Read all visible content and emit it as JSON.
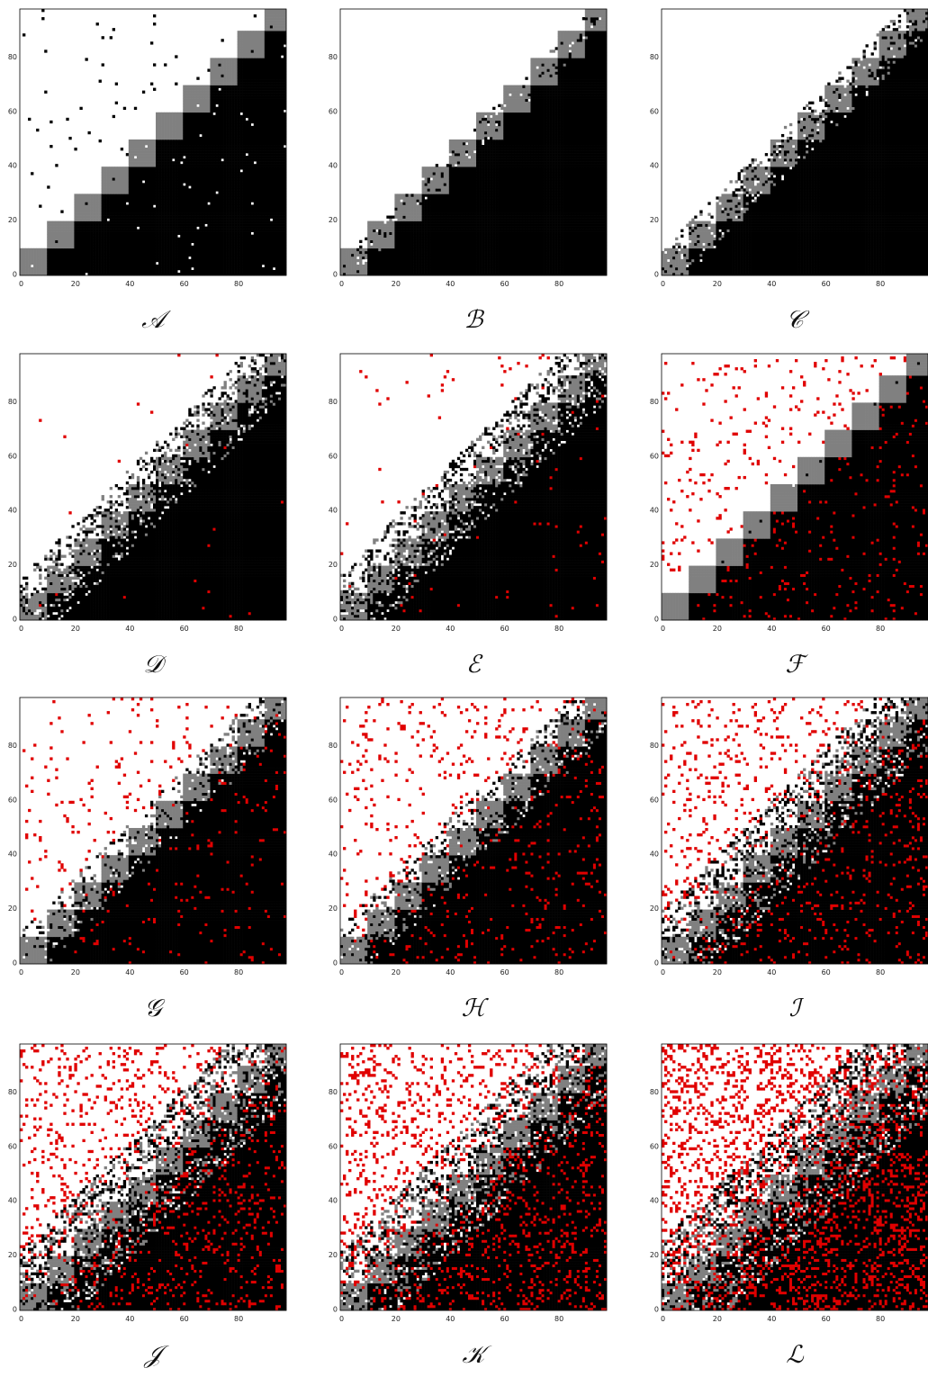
{
  "chart_data": [
    {
      "type": "heatmap",
      "label": "𝒜",
      "pattern": "A",
      "xticks": [
        0,
        20,
        40,
        60,
        80
      ],
      "yticks": [
        0,
        20,
        40,
        60,
        80
      ],
      "xlim": [
        0,
        98
      ],
      "ylim": [
        0,
        98
      ]
    },
    {
      "type": "heatmap",
      "label": "ℬ",
      "pattern": "B",
      "xticks": [
        0,
        20,
        40,
        60,
        80
      ],
      "yticks": [
        0,
        20,
        40,
        60,
        80
      ],
      "xlim": [
        0,
        98
      ],
      "ylim": [
        0,
        98
      ]
    },
    {
      "type": "heatmap",
      "label": "𝒞",
      "pattern": "C",
      "xticks": [
        0,
        20,
        40,
        60,
        80
      ],
      "yticks": [
        0,
        20,
        40,
        60,
        80
      ],
      "xlim": [
        0,
        98
      ],
      "ylim": [
        0,
        98
      ]
    },
    {
      "type": "heatmap",
      "label": "𝒟",
      "pattern": "D",
      "xticks": [
        0,
        20,
        40,
        60,
        80
      ],
      "yticks": [
        0,
        20,
        40,
        60,
        80
      ],
      "xlim": [
        0,
        98
      ],
      "ylim": [
        0,
        98
      ]
    },
    {
      "type": "heatmap",
      "label": "ℰ",
      "pattern": "E",
      "xticks": [
        0,
        20,
        40,
        60,
        80
      ],
      "yticks": [
        0,
        20,
        40,
        60,
        80
      ],
      "xlim": [
        0,
        98
      ],
      "ylim": [
        0,
        98
      ]
    },
    {
      "type": "heatmap",
      "label": "ℱ",
      "pattern": "F",
      "xticks": [
        0,
        20,
        40,
        60,
        80
      ],
      "yticks": [
        0,
        20,
        40,
        60,
        80
      ],
      "xlim": [
        0,
        98
      ],
      "ylim": [
        0,
        98
      ]
    },
    {
      "type": "heatmap",
      "label": "𝒢",
      "pattern": "G",
      "xticks": [
        0,
        20,
        40,
        60,
        80
      ],
      "yticks": [
        0,
        20,
        40,
        60,
        80
      ],
      "xlim": [
        0,
        98
      ],
      "ylim": [
        0,
        98
      ]
    },
    {
      "type": "heatmap",
      "label": "ℋ",
      "pattern": "H",
      "xticks": [
        0,
        20,
        40,
        60,
        80
      ],
      "yticks": [
        0,
        20,
        40,
        60,
        80
      ],
      "xlim": [
        0,
        98
      ],
      "ylim": [
        0,
        98
      ]
    },
    {
      "type": "heatmap",
      "label": "ℐ",
      "pattern": "I",
      "xticks": [
        0,
        20,
        40,
        60,
        80
      ],
      "yticks": [
        0,
        20,
        40,
        60,
        80
      ],
      "xlim": [
        0,
        98
      ],
      "ylim": [
        0,
        98
      ]
    },
    {
      "type": "heatmap",
      "label": "𝒥",
      "pattern": "J",
      "xticks": [
        0,
        20,
        40,
        60,
        80
      ],
      "yticks": [
        0,
        20,
        40,
        60,
        80
      ],
      "xlim": [
        0,
        98
      ],
      "ylim": [
        0,
        98
      ]
    },
    {
      "type": "heatmap",
      "label": "𝒦",
      "pattern": "K",
      "xticks": [
        0,
        20,
        40,
        60,
        80
      ],
      "yticks": [
        0,
        20,
        40,
        60,
        80
      ],
      "xlim": [
        0,
        98
      ],
      "ylim": [
        0,
        98
      ]
    },
    {
      "type": "heatmap",
      "label": "ℒ",
      "pattern": "L",
      "xticks": [
        0,
        20,
        40,
        60,
        80
      ],
      "yticks": [
        0,
        20,
        40,
        60,
        80
      ],
      "xlim": [
        0,
        98
      ],
      "ylim": [
        0,
        98
      ]
    }
  ],
  "colors": {
    "black": "#000000",
    "gray": "#808080",
    "red": "#e00000",
    "background": "#ffffff"
  }
}
